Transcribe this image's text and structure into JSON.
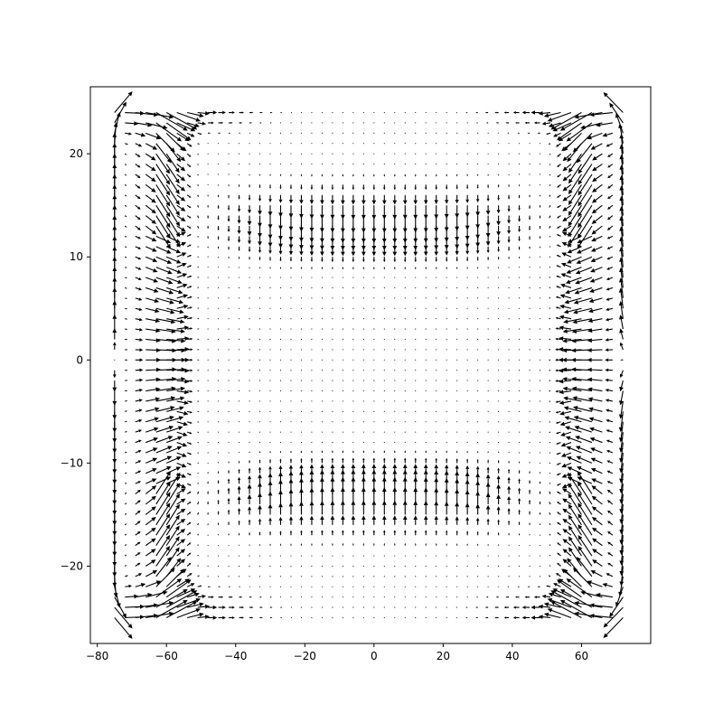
{
  "chart_data": {
    "type": "quiver",
    "title": "",
    "xlabel": "",
    "ylabel": "",
    "xlim": [
      -82,
      80
    ],
    "ylim": [
      -27.5,
      26.5
    ],
    "xticks": [
      -80,
      -60,
      -40,
      -20,
      0,
      20,
      40,
      60
    ],
    "xtick_labels": [
      "−80",
      "−60",
      "−40",
      "−20",
      "0",
      "20",
      "40",
      "60"
    ],
    "yticks": [
      -20,
      -10,
      0,
      10,
      20
    ],
    "ytick_labels": [
      "−20",
      "−10",
      "0",
      "10",
      "20"
    ],
    "grid": false,
    "legend": "none",
    "arrow_color": "#000000",
    "grid_x": {
      "start": -75,
      "stop": 72,
      "step": 3
    },
    "grid_y": {
      "start": -25,
      "stop": 24,
      "step": 1
    },
    "field": {
      "description_of_pattern": "vortex-like flow: strong vertical flow at left (x=-75) and right (x=72) edges, strong horizontal flow along top (y=24) and bottom (y=-25) edges near corners, horizontal outward flow at mid-height near |x|~55-70, vertical inward flow at |y|~10-17 near center, near-zero in central region",
      "max_magnitude": 1.0
    }
  }
}
